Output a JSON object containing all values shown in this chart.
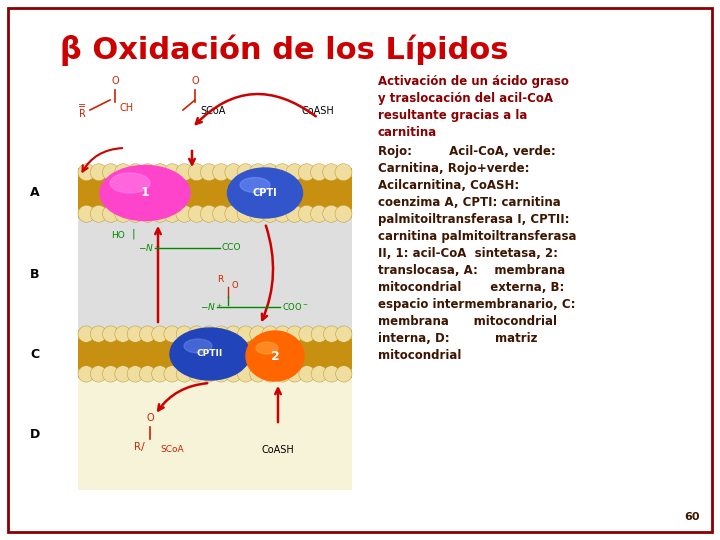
{
  "title": "β Oxidación de los Lípidos",
  "title_color": "#cc0000",
  "title_fontsize": 22,
  "background_color": "#ffffff",
  "border_color": "#8B0000",
  "text_line1_color": "#8B0000",
  "text_line1": "Activación de un ácido graso\ny traslocación del acil-CoA\nresultante gracias a la\ncarnitina",
  "text_line2_color": "#3d1500",
  "text_line2": "Rojo:         Acil-CoA, verde:\nCarnitina, Rojo+verde:\nAcilcarnitina, CoASH:\ncoenzima A, CPTI: carnitina\npalmitoiltransferasa I, CPTII:\ncarnitina palmitoiltransferasa\nII, 1: acil-CoA  sintetasa, 2:\ntranslocasa, A:    membrana\nmitocondrial       externa, B:\nespacio intermembranario, C:\nmembrana      mitocondrial\ninterna, D:           matriz\nmitocondrial",
  "text_fontsize": 8.5,
  "footnote": "60",
  "footnote_color": "#3d1500"
}
